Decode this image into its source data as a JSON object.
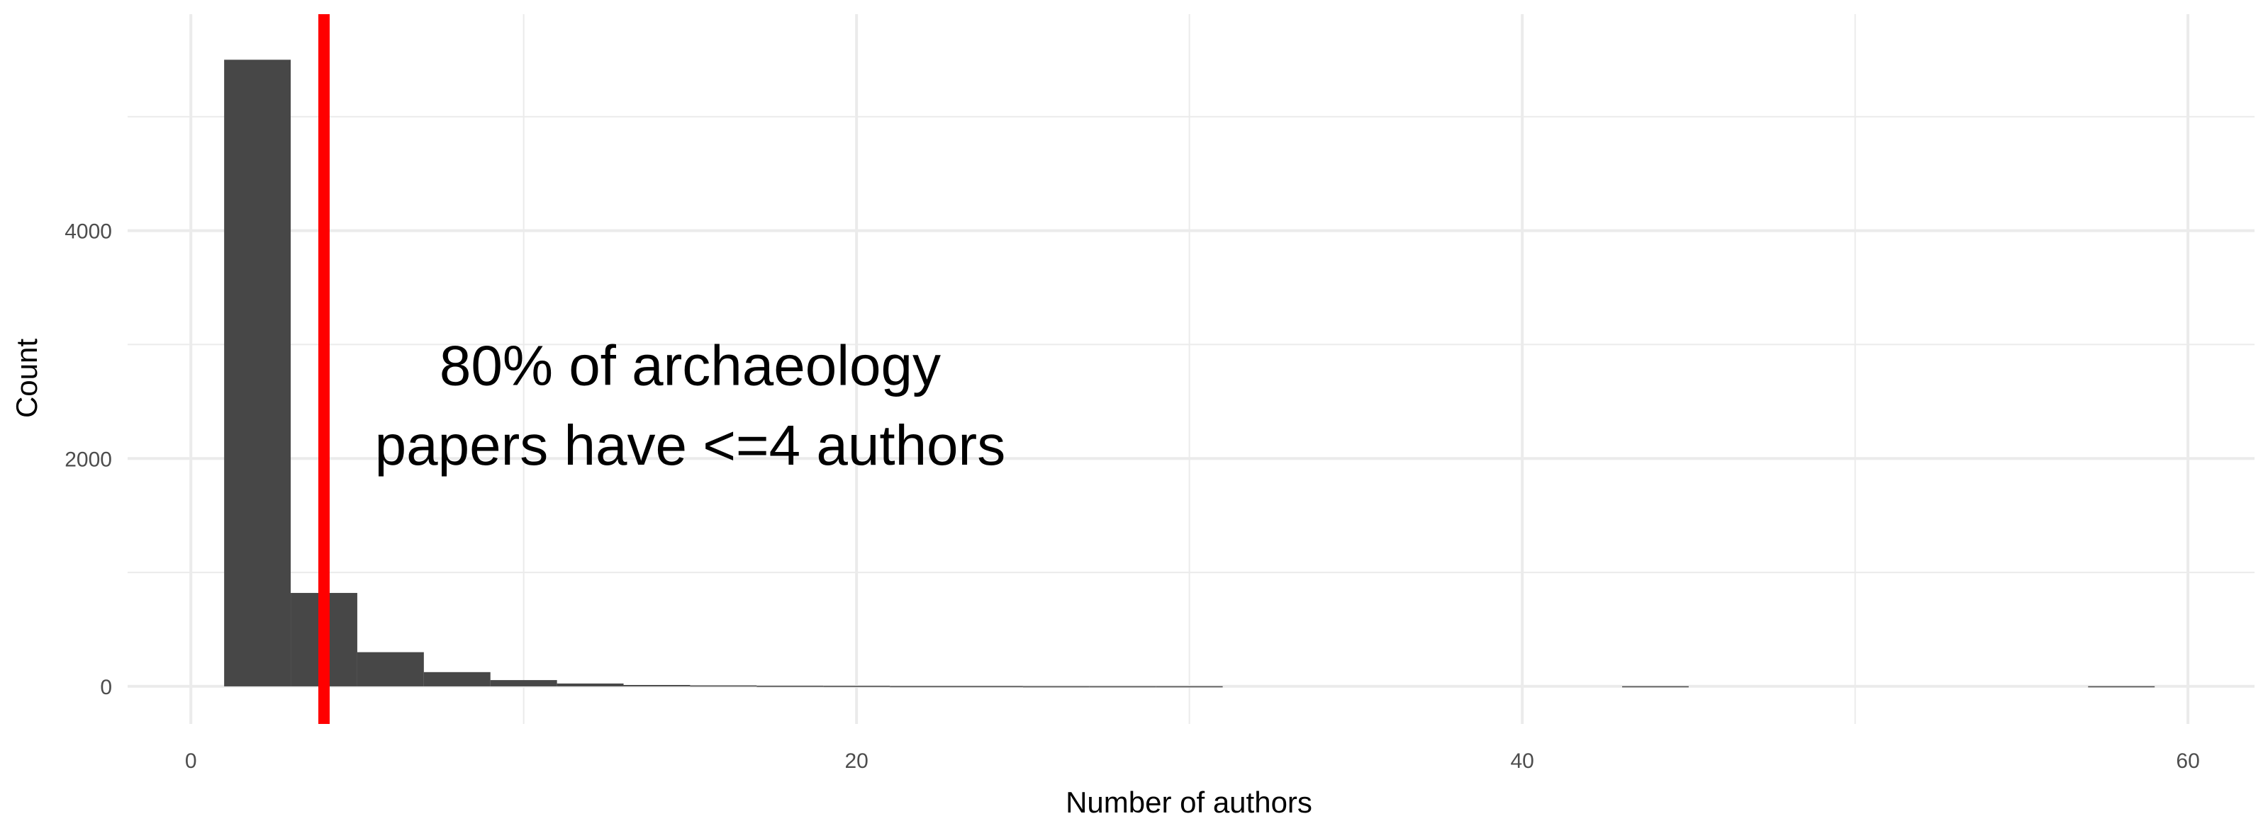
{
  "chart_data": {
    "type": "bar",
    "subtype": "histogram",
    "xlabel": "Number of authors",
    "ylabel": "Count",
    "xlim": [
      -1.9,
      62
    ],
    "ylim": [
      -330,
      5900
    ],
    "x_ticks": [
      0,
      20,
      40,
      60
    ],
    "y_ticks": [
      0,
      2000,
      4000
    ],
    "bin_width": 2,
    "bins": [
      {
        "start": 1,
        "end": 3,
        "count": 5500
      },
      {
        "start": 3,
        "end": 5,
        "count": 820
      },
      {
        "start": 5,
        "end": 7,
        "count": 300
      },
      {
        "start": 7,
        "end": 9,
        "count": 125
      },
      {
        "start": 9,
        "end": 11,
        "count": 55
      },
      {
        "start": 11,
        "end": 13,
        "count": 25
      },
      {
        "start": 13,
        "end": 15,
        "count": 12
      },
      {
        "start": 15,
        "end": 17,
        "count": 8
      },
      {
        "start": 17,
        "end": 19,
        "count": 5
      },
      {
        "start": 19,
        "end": 21,
        "count": 4
      },
      {
        "start": 21,
        "end": 23,
        "count": 2
      },
      {
        "start": 23,
        "end": 25,
        "count": 2
      },
      {
        "start": 25,
        "end": 27,
        "count": 1
      },
      {
        "start": 27,
        "end": 29,
        "count": 1
      },
      {
        "start": 29,
        "end": 31,
        "count": 1
      },
      {
        "start": 43,
        "end": 45,
        "count": 1
      },
      {
        "start": 57,
        "end": 59,
        "count": 1
      }
    ],
    "vline": {
      "x": 4,
      "color": "#ff0000"
    },
    "annotation": {
      "lines": [
        "80% of archaeology",
        "papers have <=4 authors"
      ],
      "x": 15,
      "y_lines": [
        2820,
        2120
      ]
    },
    "bar_color": "#474747",
    "grid": true,
    "grid_color": "#ebebeb",
    "legend": "none"
  }
}
